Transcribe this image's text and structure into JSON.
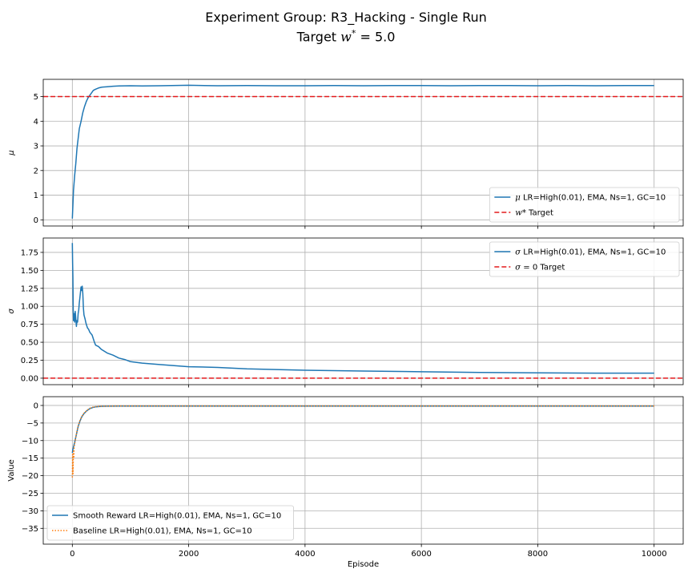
{
  "figure": {
    "title": "Experiment Group: R3_Hacking - Single Run",
    "subtitle_prefix": "Target ",
    "subtitle_math": "w",
    "subtitle_sup": "*",
    "subtitle_suffix": " = 5.0"
  },
  "chart_data": [
    {
      "type": "line",
      "ylabel": "μ",
      "xlim": [
        -500,
        10500
      ],
      "ylim": [
        -0.25,
        5.7
      ],
      "yticks": [
        0,
        1,
        2,
        3,
        4,
        5
      ],
      "xticks": [
        0,
        2000,
        4000,
        6000,
        8000,
        10000
      ],
      "grid": true,
      "legend_position": "lower-right",
      "series": [
        {
          "name": "μ LR=High(0.01), EMA, Ns=1, GC=10",
          "name_sym": "μ",
          "name_rest": " LR=High(0.01), EMA, Ns=1, GC=10",
          "color": "#1f77b4",
          "style": "solid",
          "x": [
            0,
            10,
            20,
            30,
            40,
            60,
            80,
            100,
            120,
            150,
            180,
            210,
            240,
            270,
            300,
            330,
            360,
            400,
            450,
            500,
            600,
            700,
            800,
            1000,
            1200,
            1500,
            2000,
            2500,
            3000,
            3500,
            4000,
            4500,
            5000,
            5500,
            6000,
            6500,
            7000,
            7500,
            8000,
            8500,
            9000,
            9500,
            10000
          ],
          "y": [
            0.05,
            0.6,
            1.2,
            1.5,
            1.8,
            2.3,
            2.9,
            3.3,
            3.7,
            4.0,
            4.35,
            4.6,
            4.8,
            4.95,
            5.05,
            5.15,
            5.25,
            5.3,
            5.35,
            5.38,
            5.4,
            5.42,
            5.43,
            5.44,
            5.43,
            5.44,
            5.46,
            5.44,
            5.45,
            5.44,
            5.44,
            5.45,
            5.44,
            5.45,
            5.45,
            5.44,
            5.45,
            5.45,
            5.44,
            5.45,
            5.44,
            5.45,
            5.45
          ]
        },
        {
          "name": "w* Target",
          "name_sym": "w*",
          "name_rest": " Target",
          "color": "#e31a1c",
          "style": "dashed",
          "hline": 5.0
        }
      ]
    },
    {
      "type": "line",
      "ylabel": "σ",
      "xlim": [
        -500,
        10500
      ],
      "ylim": [
        -0.09,
        1.95
      ],
      "yticks": [
        0.0,
        0.25,
        0.5,
        0.75,
        1.0,
        1.25,
        1.5,
        1.75
      ],
      "ytick_labels": [
        "0.00",
        "0.25",
        "0.50",
        "0.75",
        "1.00",
        "1.25",
        "1.50",
        "1.75"
      ],
      "xticks": [
        0,
        2000,
        4000,
        6000,
        8000,
        10000
      ],
      "grid": true,
      "legend_position": "upper-right",
      "series": [
        {
          "name": "σ LR=High(0.01), EMA, Ns=1, GC=10",
          "name_sym": "σ",
          "name_rest": " LR=High(0.01), EMA, Ns=1, GC=10",
          "color": "#1f77b4",
          "style": "solid",
          "x": [
            0,
            5,
            10,
            15,
            20,
            25,
            30,
            40,
            50,
            60,
            70,
            80,
            90,
            100,
            110,
            120,
            130,
            140,
            150,
            160,
            170,
            180,
            190,
            200,
            210,
            220,
            230,
            240,
            260,
            280,
            300,
            320,
            340,
            360,
            380,
            400,
            450,
            500,
            600,
            700,
            800,
            900,
            1000,
            1200,
            1500,
            2000,
            2500,
            3000,
            4000,
            5000,
            6000,
            7000,
            8000,
            9000,
            10000
          ],
          "y": [
            1.88,
            1.6,
            1.4,
            0.95,
            0.8,
            0.85,
            0.9,
            0.78,
            0.93,
            0.82,
            0.72,
            0.8,
            0.78,
            0.9,
            0.95,
            1.05,
            1.12,
            1.2,
            1.27,
            1.22,
            1.28,
            1.18,
            0.98,
            0.88,
            0.85,
            0.82,
            0.78,
            0.75,
            0.7,
            0.68,
            0.64,
            0.62,
            0.6,
            0.55,
            0.5,
            0.46,
            0.44,
            0.4,
            0.35,
            0.32,
            0.28,
            0.26,
            0.23,
            0.21,
            0.19,
            0.16,
            0.15,
            0.13,
            0.11,
            0.1,
            0.09,
            0.08,
            0.075,
            0.07,
            0.07
          ]
        },
        {
          "name": "σ = 0 Target",
          "name_sym": "σ",
          "name_rest": " = 0 Target",
          "color": "#e31a1c",
          "style": "dashed",
          "hline": 0.0
        }
      ]
    },
    {
      "type": "line",
      "ylabel": "Value",
      "xlabel": "Episode",
      "xlim": [
        -500,
        10500
      ],
      "ylim": [
        -39.5,
        2.5
      ],
      "yticks": [
        0,
        -5,
        -10,
        -15,
        -20,
        -25,
        -30,
        -35
      ],
      "xticks": [
        0,
        2000,
        4000,
        6000,
        8000,
        10000
      ],
      "xtick_labels": [
        "0",
        "2000",
        "4000",
        "6000",
        "8000",
        "10000"
      ],
      "grid": true,
      "legend_position": "lower-left",
      "series": [
        {
          "name": "Smooth Reward LR=High(0.01), EMA, Ns=1, GC=10",
          "color": "#1f77b4",
          "style": "solid",
          "x": [
            0,
            10,
            20,
            40,
            60,
            80,
            100,
            130,
            160,
            200,
            250,
            300,
            350,
            400,
            500,
            600,
            800,
            1000,
            2000,
            4000,
            6000,
            8000,
            10000
          ],
          "y": [
            -13.5,
            -12.5,
            -11.8,
            -10.5,
            -9.0,
            -7.5,
            -6.0,
            -4.5,
            -3.3,
            -2.3,
            -1.5,
            -0.9,
            -0.6,
            -0.4,
            -0.25,
            -0.2,
            -0.18,
            -0.18,
            -0.18,
            -0.18,
            -0.18,
            -0.18,
            -0.18
          ]
        },
        {
          "name": "Baseline LR=High(0.01), EMA, Ns=1, GC=10",
          "color": "#ff7f0e",
          "style": "dotted",
          "x": [
            0,
            5,
            10,
            15,
            20,
            25,
            30,
            40,
            50,
            60,
            80,
            100,
            130,
            160,
            200,
            250,
            300,
            350,
            400,
            500,
            600,
            800,
            1000,
            2000,
            4000,
            6000,
            8000,
            10000
          ],
          "y": [
            -20.5,
            -14.0,
            -19.5,
            -16.5,
            -13.0,
            -15.0,
            -12.0,
            -11.0,
            -10.0,
            -9.0,
            -7.3,
            -5.8,
            -4.3,
            -3.2,
            -2.2,
            -1.4,
            -0.8,
            -0.5,
            -0.35,
            -0.22,
            -0.18,
            -0.16,
            -0.16,
            -0.16,
            -0.16,
            -0.16,
            -0.16,
            -0.16
          ]
        }
      ]
    }
  ]
}
